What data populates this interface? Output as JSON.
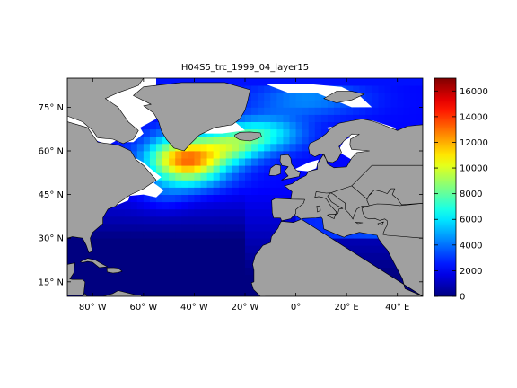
{
  "title": "H04S5_trc_1999_04_layer15",
  "map": {
    "lon_range": [
      -90,
      50
    ],
    "lat_range": [
      10,
      85
    ],
    "projection": "equirectangular",
    "land_color": "#a0a0a0",
    "nodata_color": "#ffffff",
    "lon_ticks": [
      {
        "value": -80,
        "label": "80° W"
      },
      {
        "value": -60,
        "label": "60° W"
      },
      {
        "value": -40,
        "label": "40° W"
      },
      {
        "value": -20,
        "label": "20° W"
      },
      {
        "value": 0,
        "label": "0°"
      },
      {
        "value": 20,
        "label": "20° E"
      },
      {
        "value": 40,
        "label": "40° E"
      }
    ],
    "lat_ticks": [
      {
        "value": 15,
        "label": "15° N"
      },
      {
        "value": 30,
        "label": "30° N"
      },
      {
        "value": 45,
        "label": "45° N"
      },
      {
        "value": 60,
        "label": "60° N"
      },
      {
        "value": 75,
        "label": "75° N"
      }
    ]
  },
  "colorbar": {
    "min": 0,
    "max": 17000,
    "colormap": "jet",
    "ticks": [
      0,
      2000,
      4000,
      6000,
      8000,
      10000,
      12000,
      14000,
      16000
    ]
  },
  "field_description": {
    "max_region": "Labrador Sea / Irminger Sea",
    "high_value_peak": 12500,
    "min_region": "Caribbean Sea / tropical Atlantic"
  }
}
